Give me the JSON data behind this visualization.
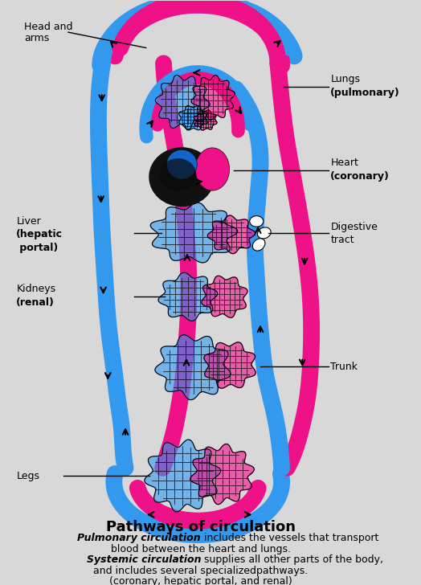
{
  "bg_color": "#d8d8d8",
  "title": "Pathways of circulation",
  "caption_line1": "Pulmonary circulation",
  "caption_line1b": " includes the vessels that transport",
  "caption_line2": "blood between the heart and lungs.",
  "caption_line3": "Systemic circulation",
  "caption_line3b": " supplies all other parts of the body,",
  "caption_line4": "and includes several specializedpathways.",
  "caption_line5": "(coronary, hepatic portal, and renal)",
  "blue_color": "#3399EE",
  "pink_color": "#EE1188",
  "label_fs": 9,
  "title_fs": 13,
  "cap_fs": 9
}
